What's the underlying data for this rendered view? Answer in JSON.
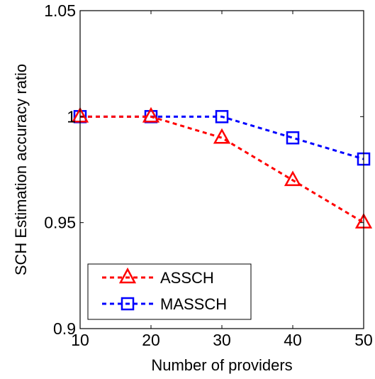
{
  "chart_data": {
    "type": "line",
    "title": "",
    "xlabel": "Number of providers",
    "ylabel": "SCH Estimation accuracy ratio",
    "x": [
      10,
      20,
      30,
      40,
      50
    ],
    "xlim": [
      10,
      50
    ],
    "ylim": [
      0.9,
      1.05
    ],
    "xticks": [
      "10",
      "20",
      "30",
      "40",
      "50"
    ],
    "yticks": [
      "0.9",
      "0.95",
      "1",
      "1.05"
    ],
    "ytick_values": [
      0.9,
      0.95,
      1.0,
      1.05
    ],
    "grid": false,
    "legend_position": "bottom-left",
    "series": [
      {
        "name": "ASSCH",
        "values": [
          1.0,
          1.0,
          0.99,
          0.97,
          0.95
        ],
        "color": "#ff0000",
        "marker": "triangle",
        "line_style": "dashed"
      },
      {
        "name": "MASSCH",
        "values": [
          1.0,
          1.0,
          1.0,
          0.99,
          0.98
        ],
        "color": "#0000ff",
        "marker": "square",
        "line_style": "dashed"
      }
    ]
  }
}
